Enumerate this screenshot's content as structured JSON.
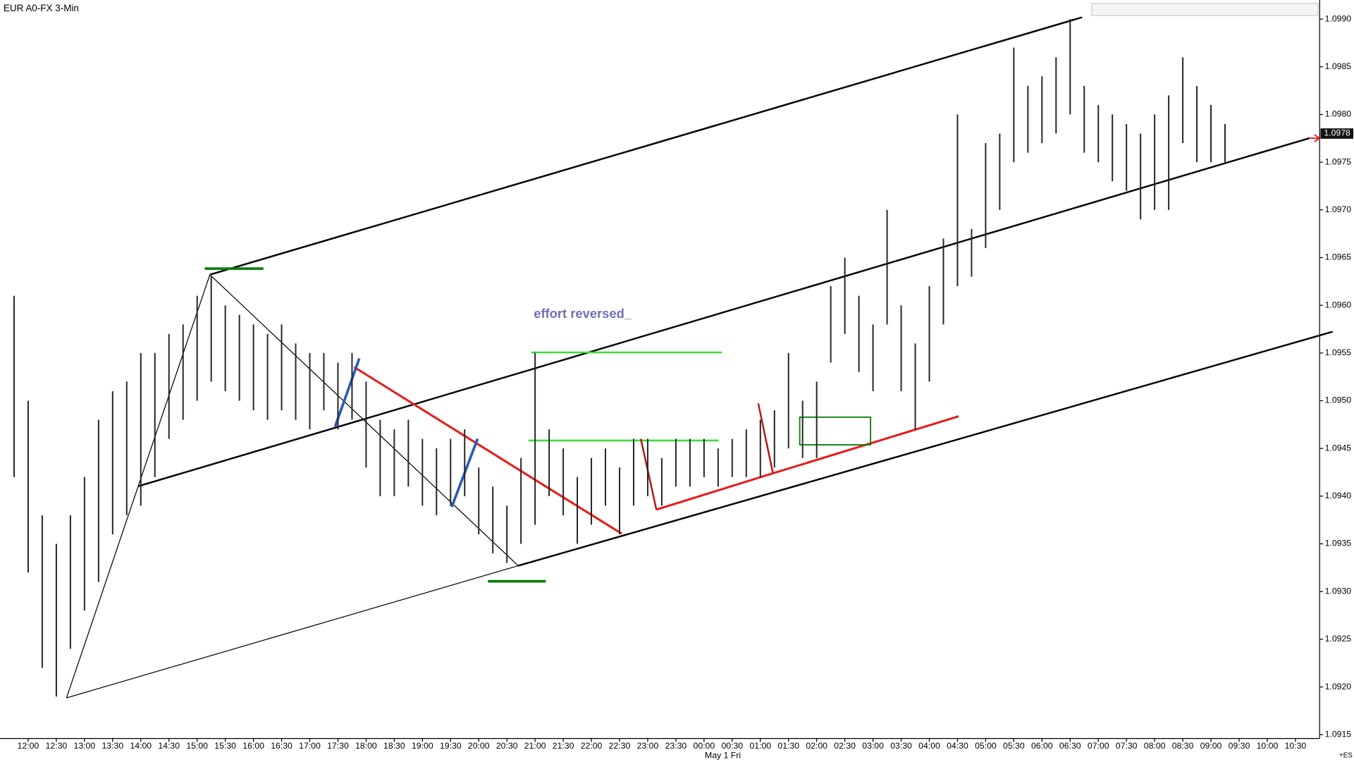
{
  "chart_data": {
    "type": "ohlc",
    "title": "EUR A0-FX 3-Min",
    "annotation": "effort reversed_",
    "x_axis_note": "May 1 Fri",
    "corner_label": "+ES",
    "last_price": 1.0978,
    "xlim": [
      -0.5,
      22.93
    ],
    "ylim": [
      1.09146,
      1.0992
    ],
    "xticks": [
      {
        "value": 0,
        "label": "12:00"
      },
      {
        "value": 0.5,
        "label": "12:30"
      },
      {
        "value": 1,
        "label": "13:00"
      },
      {
        "value": 1.5,
        "label": "13:30"
      },
      {
        "value": 2,
        "label": "14:00"
      },
      {
        "value": 2.5,
        "label": "14:30"
      },
      {
        "value": 3,
        "label": "15:00"
      },
      {
        "value": 3.5,
        "label": "15:30"
      },
      {
        "value": 4,
        "label": "16:00"
      },
      {
        "value": 4.5,
        "label": "16:30"
      },
      {
        "value": 5,
        "label": "17:00"
      },
      {
        "value": 5.5,
        "label": "17:30"
      },
      {
        "value": 6,
        "label": "18:00"
      },
      {
        "value": 6.5,
        "label": "18:30"
      },
      {
        "value": 7,
        "label": "19:00"
      },
      {
        "value": 7.5,
        "label": "19:30"
      },
      {
        "value": 8,
        "label": "20:00"
      },
      {
        "value": 8.5,
        "label": "20:30"
      },
      {
        "value": 9,
        "label": "21:00"
      },
      {
        "value": 9.5,
        "label": "21:30"
      },
      {
        "value": 10,
        "label": "22:00"
      },
      {
        "value": 10.5,
        "label": "22:30"
      },
      {
        "value": 11,
        "label": "23:00"
      },
      {
        "value": 11.5,
        "label": "23:30"
      },
      {
        "value": 12,
        "label": "00:00"
      },
      {
        "value": 12.5,
        "label": "00:30"
      },
      {
        "value": 13,
        "label": "01:00"
      },
      {
        "value": 13.5,
        "label": "01:30"
      },
      {
        "value": 14,
        "label": "02:00"
      },
      {
        "value": 14.5,
        "label": "02:30"
      },
      {
        "value": 15,
        "label": "03:00"
      },
      {
        "value": 15.5,
        "label": "03:30"
      },
      {
        "value": 16,
        "label": "04:00"
      },
      {
        "value": 16.5,
        "label": "04:30"
      },
      {
        "value": 17,
        "label": "05:00"
      },
      {
        "value": 17.5,
        "label": "05:30"
      },
      {
        "value": 18,
        "label": "06:00"
      },
      {
        "value": 18.5,
        "label": "06:30"
      },
      {
        "value": 19,
        "label": "07:00"
      },
      {
        "value": 19.5,
        "label": "07:30"
      },
      {
        "value": 20,
        "label": "08:00"
      },
      {
        "value": 20.5,
        "label": "08:30"
      },
      {
        "value": 21,
        "label": "09:00"
      },
      {
        "value": 21.5,
        "label": "09:30"
      },
      {
        "value": 22,
        "label": "10:00"
      },
      {
        "value": 22.5,
        "label": "10:30"
      }
    ],
    "yticks": [
      1.0915,
      {
        "value": 1.092,
        "label": "1.0920"
      },
      1.0925,
      {
        "value": 1.093,
        "label": "1.0930"
      },
      1.0935,
      {
        "value": 1.094,
        "label": "1.0940"
      },
      1.0945,
      {
        "value": 1.095,
        "label": "1.0950"
      },
      1.0955,
      {
        "value": 1.096,
        "label": "1.0960"
      },
      1.0965,
      {
        "value": 1.097,
        "label": "1.0970"
      },
      1.0975,
      {
        "value": 1.098,
        "label": "1.0980"
      },
      1.0985,
      {
        "value": 1.099,
        "label": "1.0990"
      }
    ],
    "bars": {
      "color": "#222222",
      "x": [
        -0.25,
        0,
        0.25,
        0.5,
        0.75,
        1,
        1.25,
        1.5,
        1.75,
        2,
        2.25,
        2.5,
        2.75,
        3,
        3.25,
        3.5,
        3.75,
        4,
        4.25,
        4.5,
        4.75,
        5,
        5.25,
        5.5,
        5.75,
        6,
        6.25,
        6.5,
        6.75,
        7,
        7.25,
        7.5,
        7.75,
        8,
        8.25,
        8.5,
        8.75,
        9,
        9.25,
        9.5,
        9.75,
        10,
        10.25,
        10.5,
        10.75,
        11,
        11.25,
        11.5,
        11.75,
        12,
        12.25,
        12.5,
        12.75,
        13,
        13.25,
        13.5,
        13.75,
        14,
        14.25,
        14.5,
        14.75,
        15,
        15.25,
        15.5,
        15.75,
        16,
        16.25,
        16.5,
        16.75,
        17,
        17.25,
        17.5,
        17.75,
        18,
        18.25,
        18.5,
        18.75,
        19,
        19.25,
        19.5,
        19.75,
        20,
        20.25,
        20.5,
        20.75,
        21,
        21.25
      ],
      "low": [
        1.0942,
        1.0932,
        1.0922,
        1.0919,
        1.0924,
        1.0928,
        1.0931,
        1.0936,
        1.0938,
        1.0939,
        1.0942,
        1.0946,
        1.0948,
        1.095,
        1.0952,
        1.0951,
        1.095,
        1.0949,
        1.0948,
        1.0949,
        1.0948,
        1.0947,
        1.0949,
        1.0947,
        1.0948,
        1.0943,
        1.094,
        1.094,
        1.0941,
        1.0939,
        1.0938,
        1.0939,
        1.094,
        1.0936,
        1.0934,
        1.0933,
        1.0935,
        1.0937,
        1.094,
        1.0938,
        1.0935,
        1.0937,
        1.0939,
        1.0936,
        1.0939,
        1.094,
        1.0939,
        1.0941,
        1.0941,
        1.0942,
        1.0941,
        1.0942,
        1.0942,
        1.0942,
        1.0943,
        1.0945,
        1.0944,
        1.0944,
        1.0954,
        1.0957,
        1.0953,
        1.0951,
        1.0958,
        1.0951,
        1.0947,
        1.0952,
        1.0958,
        1.0962,
        1.0963,
        1.0966,
        1.097,
        1.0975,
        1.0976,
        1.0977,
        1.0978,
        1.098,
        1.0976,
        1.0975,
        1.0973,
        1.0972,
        1.0969,
        1.097,
        1.097,
        1.0977,
        1.0975,
        1.0975,
        1.0975
      ],
      "high": [
        1.0961,
        1.095,
        1.0938,
        1.0935,
        1.0938,
        1.0942,
        1.0948,
        1.0951,
        1.0952,
        1.0955,
        1.0955,
        1.0957,
        1.0958,
        1.0961,
        1.0963,
        1.096,
        1.0959,
        1.0958,
        1.0957,
        1.0958,
        1.0956,
        1.0955,
        1.0955,
        1.0954,
        1.0955,
        1.0952,
        1.0948,
        1.0947,
        1.0948,
        1.0946,
        1.0945,
        1.0946,
        1.0947,
        1.0943,
        1.0941,
        1.0939,
        1.0944,
        1.0955,
        1.0947,
        1.0945,
        1.0942,
        1.0944,
        1.0945,
        1.0943,
        1.0946,
        1.0946,
        1.0944,
        1.0946,
        1.0946,
        1.0946,
        1.0945,
        1.0946,
        1.0947,
        1.0948,
        1.0949,
        1.0955,
        1.095,
        1.0952,
        1.0962,
        1.0965,
        1.0961,
        1.0958,
        1.097,
        1.096,
        1.0956,
        1.0962,
        1.0967,
        1.098,
        1.0968,
        1.0977,
        1.0978,
        1.0987,
        1.0983,
        1.0984,
        1.0986,
        1.099,
        1.0983,
        1.0981,
        1.098,
        1.0979,
        1.0978,
        1.098,
        1.0982,
        1.0986,
        1.0983,
        1.0981,
        1.0979
      ]
    }
  }
}
